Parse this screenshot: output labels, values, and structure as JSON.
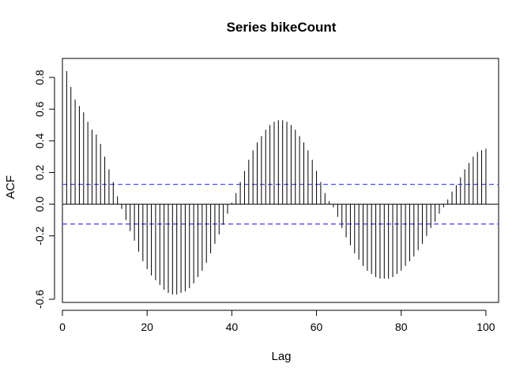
{
  "chart_data": {
    "type": "bar",
    "title": "Series  bikeCount",
    "xlabel": "Lag",
    "ylabel": "ACF",
    "xlim": [
      0,
      103
    ],
    "ylim": [
      -0.62,
      0.92
    ],
    "x_ticks": [
      0,
      20,
      40,
      60,
      80,
      100
    ],
    "x_tick_labels": [
      "0",
      "20",
      "40",
      "60",
      "80",
      "100"
    ],
    "y_ticks": [
      -0.6,
      -0.2,
      0.0,
      0.2,
      0.4,
      0.6,
      0.8
    ],
    "y_tick_labels": [
      "-0.6",
      "-0.2",
      "0.0",
      "0.2",
      "0.4",
      "0.6",
      "0.8"
    ],
    "lags": [
      1,
      2,
      3,
      4,
      5,
      6,
      7,
      8,
      9,
      10,
      11,
      12,
      13,
      14,
      15,
      16,
      17,
      18,
      19,
      20,
      21,
      22,
      23,
      24,
      25,
      26,
      27,
      28,
      29,
      30,
      31,
      32,
      33,
      34,
      35,
      36,
      37,
      38,
      39,
      40,
      41,
      42,
      43,
      44,
      45,
      46,
      47,
      48,
      49,
      50,
      51,
      52,
      53,
      54,
      55,
      56,
      57,
      58,
      59,
      60,
      61,
      62,
      63,
      64,
      65,
      66,
      67,
      68,
      69,
      70,
      71,
      72,
      73,
      74,
      75,
      76,
      77,
      78,
      79,
      80,
      81,
      82,
      83,
      84,
      85,
      86,
      87,
      88,
      89,
      90,
      91,
      92,
      93,
      94,
      95,
      96,
      97,
      98,
      99,
      100
    ],
    "acf": [
      0.84,
      0.74,
      0.66,
      0.62,
      0.58,
      0.52,
      0.47,
      0.44,
      0.38,
      0.3,
      0.22,
      0.14,
      0.05,
      -0.03,
      -0.1,
      -0.17,
      -0.23,
      -0.3,
      -0.36,
      -0.41,
      -0.45,
      -0.48,
      -0.51,
      -0.54,
      -0.56,
      -0.57,
      -0.57,
      -0.56,
      -0.55,
      -0.53,
      -0.5,
      -0.46,
      -0.42,
      -0.37,
      -0.31,
      -0.25,
      -0.19,
      -0.13,
      -0.06,
      0.01,
      0.07,
      0.14,
      0.21,
      0.28,
      0.34,
      0.39,
      0.43,
      0.47,
      0.5,
      0.52,
      0.53,
      0.53,
      0.52,
      0.5,
      0.47,
      0.43,
      0.39,
      0.34,
      0.28,
      0.21,
      0.14,
      0.07,
      0.02,
      -0.02,
      -0.08,
      -0.15,
      -0.21,
      -0.26,
      -0.31,
      -0.35,
      -0.39,
      -0.42,
      -0.44,
      -0.46,
      -0.47,
      -0.47,
      -0.47,
      -0.46,
      -0.44,
      -0.42,
      -0.39,
      -0.36,
      -0.33,
      -0.29,
      -0.25,
      -0.2,
      -0.15,
      -0.11,
      -0.06,
      -0.02,
      0.03,
      0.08,
      0.12,
      0.17,
      0.22,
      0.26,
      0.3,
      0.33,
      0.34,
      0.35
    ],
    "confidence_band": 0.125,
    "confidence_color": "#4d4dff",
    "bar_color": "#000000"
  }
}
